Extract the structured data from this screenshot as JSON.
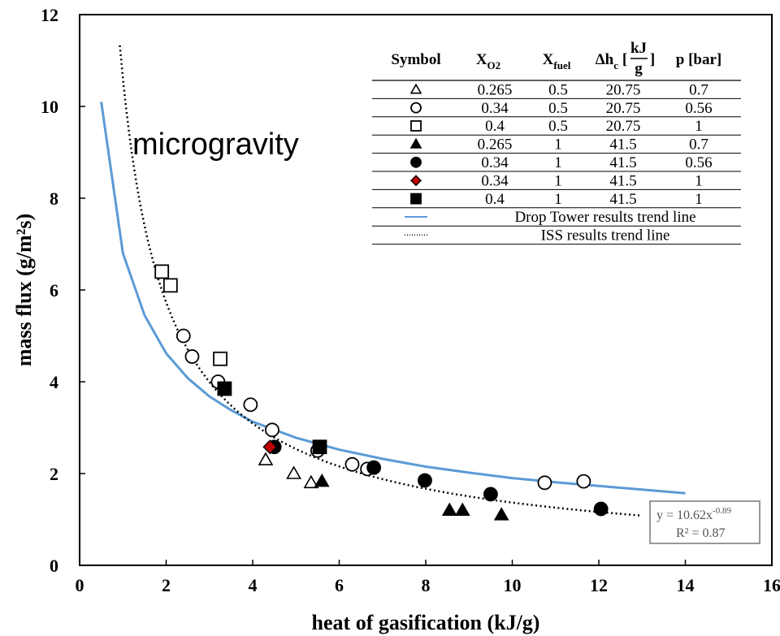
{
  "chart_data": {
    "type": "scatter",
    "xlabel": "heat of gasification (kJ/g)",
    "ylabel": "mass flux (g/m²s)",
    "xlim": [
      0,
      16
    ],
    "ylim": [
      0,
      12
    ],
    "x_ticks": [
      "0",
      "2",
      "4",
      "6",
      "8",
      "10",
      "12",
      "14",
      "16"
    ],
    "y_ticks": [
      "0",
      "2",
      "4",
      "6",
      "8",
      "10",
      "12"
    ],
    "annotation": "microgravity",
    "equation": {
      "line1": "y = 10.62x",
      "exponent": "-0.89",
      "line2": "R² = 0.87"
    },
    "legend": {
      "headers": {
        "symbol": "Symbol",
        "xo2": "X",
        "xo2_sub": "O2",
        "xfuel": "X",
        "xfuel_sub": "fuel",
        "dh": "Δh",
        "dh_sub": "c",
        "dh_unit_num": "kJ",
        "dh_unit_den": "g",
        "p": "p [bar]"
      },
      "rows": [
        {
          "marker": "triangle-open",
          "xo2": "0.265",
          "xfuel": "0.5",
          "dh": "20.75",
          "p": "0.7"
        },
        {
          "marker": "circle-open",
          "xo2": "0.34",
          "xfuel": "0.5",
          "dh": "20.75",
          "p": "0.56"
        },
        {
          "marker": "square-open",
          "xo2": "0.4",
          "xfuel": "0.5",
          "dh": "20.75",
          "p": "1"
        },
        {
          "marker": "triangle-filled",
          "xo2": "0.265",
          "xfuel": "1",
          "dh": "41.5",
          "p": "0.7"
        },
        {
          "marker": "circle-filled",
          "xo2": "0.34",
          "xfuel": "1",
          "dh": "41.5",
          "p": "0.56"
        },
        {
          "marker": "diamond-red",
          "xo2": "0.34",
          "xfuel": "1",
          "dh": "41.5",
          "p": "1"
        },
        {
          "marker": "square-filled",
          "xo2": "0.4",
          "xfuel": "1",
          "dh": "41.5",
          "p": "1"
        }
      ],
      "lines": [
        {
          "style": "solid",
          "label": "Drop Tower results trend line"
        },
        {
          "style": "dotted",
          "label": "ISS results trend line"
        }
      ]
    },
    "series": [
      {
        "marker": "triangle-open",
        "points": [
          [
            4.3,
            2.3
          ],
          [
            4.95,
            2.0
          ],
          [
            5.35,
            1.8
          ]
        ]
      },
      {
        "marker": "circle-open",
        "points": [
          [
            2.4,
            5.0
          ],
          [
            2.6,
            4.55
          ],
          [
            3.2,
            4.0
          ],
          [
            3.95,
            3.5
          ],
          [
            4.45,
            2.95
          ],
          [
            5.5,
            2.5
          ],
          [
            6.3,
            2.2
          ],
          [
            6.65,
            2.1
          ],
          [
            10.75,
            1.8
          ],
          [
            11.65,
            1.83
          ]
        ]
      },
      {
        "marker": "square-open",
        "points": [
          [
            1.9,
            6.4
          ],
          [
            2.1,
            6.1
          ],
          [
            3.25,
            4.5
          ]
        ]
      },
      {
        "marker": "triangle-filled",
        "points": [
          [
            5.6,
            1.83
          ],
          [
            8.55,
            1.2
          ],
          [
            8.85,
            1.2
          ],
          [
            9.75,
            1.1
          ]
        ]
      },
      {
        "marker": "circle-filled",
        "points": [
          [
            4.5,
            2.58
          ],
          [
            6.8,
            2.13
          ],
          [
            7.98,
            1.85
          ],
          [
            9.5,
            1.55
          ],
          [
            12.05,
            1.23
          ]
        ]
      },
      {
        "marker": "diamond-red",
        "points": [
          [
            4.4,
            2.58
          ]
        ]
      },
      {
        "marker": "square-filled",
        "points": [
          [
            3.35,
            3.85
          ],
          [
            5.55,
            2.58
          ]
        ]
      }
    ],
    "trend_lines": [
      {
        "name": "Drop Tower results trend line",
        "style": "solid",
        "color": "#5b9bd5",
        "points": [
          [
            0.5,
            10.1
          ],
          [
            1.0,
            6.8
          ],
          [
            1.5,
            5.45
          ],
          [
            2.0,
            4.62
          ],
          [
            2.5,
            4.08
          ],
          [
            3.0,
            3.68
          ],
          [
            3.5,
            3.38
          ],
          [
            4.0,
            3.13
          ],
          [
            5.0,
            2.78
          ],
          [
            6.0,
            2.52
          ],
          [
            7.0,
            2.32
          ],
          [
            8.0,
            2.15
          ],
          [
            9.0,
            2.02
          ],
          [
            10.0,
            1.9
          ],
          [
            11.0,
            1.81
          ],
          [
            12.0,
            1.73
          ],
          [
            13.0,
            1.65
          ],
          [
            14.0,
            1.57
          ]
        ]
      },
      {
        "name": "ISS results trend line",
        "style": "dotted",
        "color": "#000000",
        "fit": {
          "a": 10.62,
          "b": -0.89
        },
        "x_range": [
          0.93,
          13.0
        ]
      }
    ]
  }
}
